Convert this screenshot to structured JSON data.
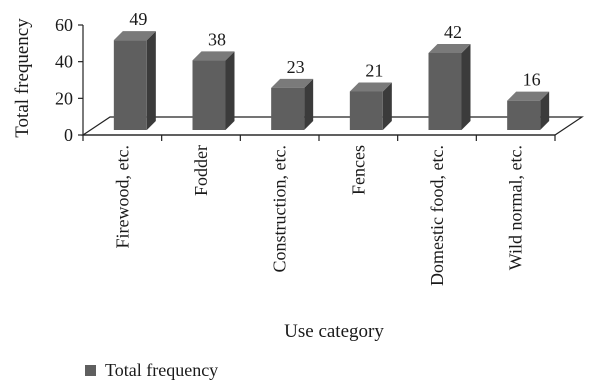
{
  "chart_data": {
    "type": "bar",
    "categories": [
      "Firewood, etc.",
      "Fodder",
      "Construction, etc.",
      "Fences",
      "Domestic food, etc.",
      "Wild normal, etc."
    ],
    "series": [
      {
        "name": "Total frequency",
        "values": [
          49,
          38,
          23,
          21,
          42,
          16
        ]
      }
    ],
    "title": "",
    "xlabel": "Use category",
    "ylabel": "Total frequency",
    "ylim": [
      0,
      60
    ],
    "yticks": [
      0,
      20,
      40,
      60
    ],
    "grid": false,
    "legend": "bottom-left",
    "bar_style": "3d",
    "colors": {
      "bar_front": "#5f5f5f",
      "bar_side": "#3b3b3b",
      "bar_top": "#7a7a7a",
      "legend_swatch": "#5f5f5f",
      "axis": "#222222"
    }
  }
}
